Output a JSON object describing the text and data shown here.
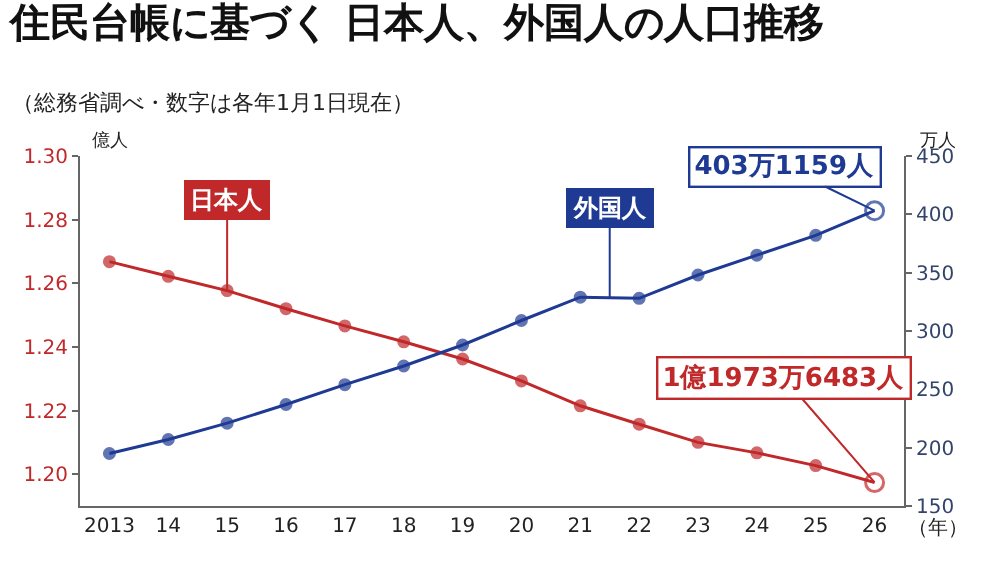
{
  "chart_data": {
    "type": "line",
    "title": "住民台帳に基づく 日本人、外国人の人口推移",
    "subtitle": "（総務省調べ・数字は各年1月1日現在）",
    "xlabel": "（年）",
    "ylabel": "億人",
    "y2label": "万人",
    "categories": [
      "2013",
      "14",
      "15",
      "16",
      "17",
      "18",
      "19",
      "20",
      "21",
      "22",
      "23",
      "24",
      "25",
      "26"
    ],
    "series": [
      {
        "name": "日本人",
        "color": "#c0282a",
        "values": [
          1.2668,
          1.2622,
          1.2577,
          1.252,
          1.2466,
          1.2416,
          1.2362,
          1.2293,
          1.2215,
          1.2157,
          1.21,
          1.2067,
          1.2027,
          1.1974
        ],
        "value_labels": [
          null,
          null,
          null,
          null,
          null,
          null,
          null,
          null,
          null,
          null,
          null,
          null,
          null,
          "1億1973万6483人"
        ]
      },
      {
        "name": "外国人",
        "color": "#1f3a93",
        "axis": "y2",
        "values": [
          195,
          207,
          221,
          237,
          254,
          270,
          288,
          309,
          329,
          328,
          348,
          365,
          382,
          403.1159
        ],
        "value_labels": [
          null,
          null,
          null,
          null,
          null,
          null,
          null,
          null,
          null,
          null,
          null,
          null,
          null,
          "403万1159人"
        ]
      }
    ],
    "ylim": [
      1.19,
      1.3
    ],
    "yticks": [
      {
        "value": 1.2,
        "label": "1.20"
      },
      {
        "value": 1.22,
        "label": "1.22"
      },
      {
        "value": 1.24,
        "label": "1.24"
      },
      {
        "value": 1.26,
        "label": "1.26"
      },
      {
        "value": 1.28,
        "label": "1.28"
      },
      {
        "value": 1.3,
        "label": "1.30"
      }
    ],
    "y2lim": [
      150,
      450
    ],
    "y2ticks": [
      150,
      200,
      250,
      300,
      350,
      400,
      450
    ],
    "marker": "circle",
    "line_style": "solid",
    "grid": false,
    "legend": false
  }
}
